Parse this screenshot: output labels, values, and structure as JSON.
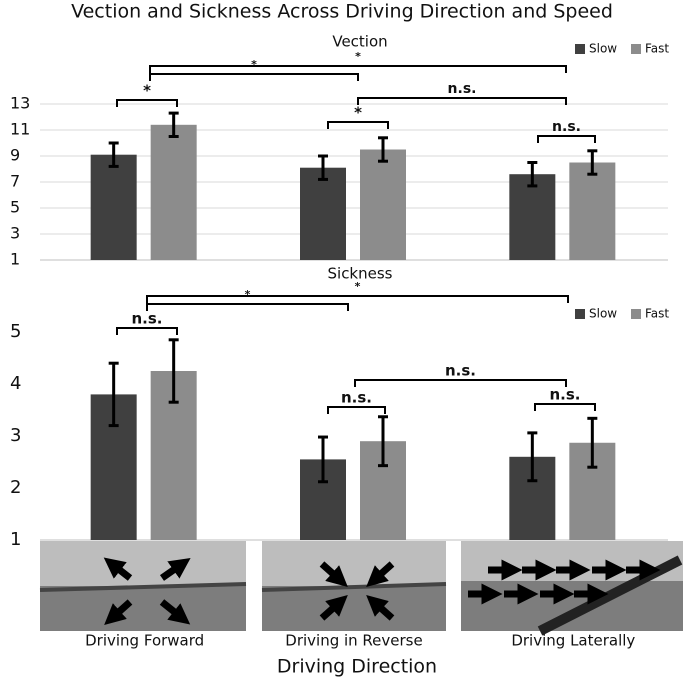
{
  "title": "Vection and Sickness Across Driving Direction and Speed",
  "x_label": "Driving Direction",
  "chart_data": [
    {
      "type": "bar",
      "title": "Vection",
      "categories": [
        null,
        null,
        null
      ],
      "series": [
        {
          "name": "Slow",
          "color": "#404040",
          "values": [
            9.1,
            8.1,
            7.6
          ],
          "errors": [
            0.9,
            0.9,
            0.9
          ]
        },
        {
          "name": "Fast",
          "color": "#8c8c8c",
          "values": [
            11.4,
            9.5,
            8.5
          ],
          "errors": [
            0.9,
            0.9,
            0.9
          ]
        }
      ],
      "ylim": [
        1,
        13
      ],
      "yticks": [
        1,
        3,
        5,
        7,
        9,
        11,
        13
      ],
      "grid": true,
      "legend": "top-right",
      "annotations": [
        "*",
        "*",
        "*",
        "*",
        "n.s.",
        "n.s."
      ]
    },
    {
      "type": "bar",
      "title": "Sickness",
      "categories": [
        "Driving Forward",
        "Driving in Reverse",
        "Driving Laterally"
      ],
      "series": [
        {
          "name": "Slow",
          "color": "#404040",
          "values": [
            3.8,
            2.55,
            2.6
          ],
          "errors": [
            0.6,
            0.43,
            0.46
          ]
        },
        {
          "name": "Fast",
          "color": "#8c8c8c",
          "values": [
            4.25,
            2.9,
            2.87
          ],
          "errors": [
            0.6,
            0.47,
            0.47
          ]
        }
      ],
      "ylim": [
        1,
        5
      ],
      "yticks": [
        1,
        2,
        3,
        4,
        5
      ],
      "grid": false,
      "legend": "top-right",
      "annotations": [
        "n.s.",
        "*",
        "*",
        "n.s.",
        "n.s.",
        "n.s."
      ]
    }
  ]
}
